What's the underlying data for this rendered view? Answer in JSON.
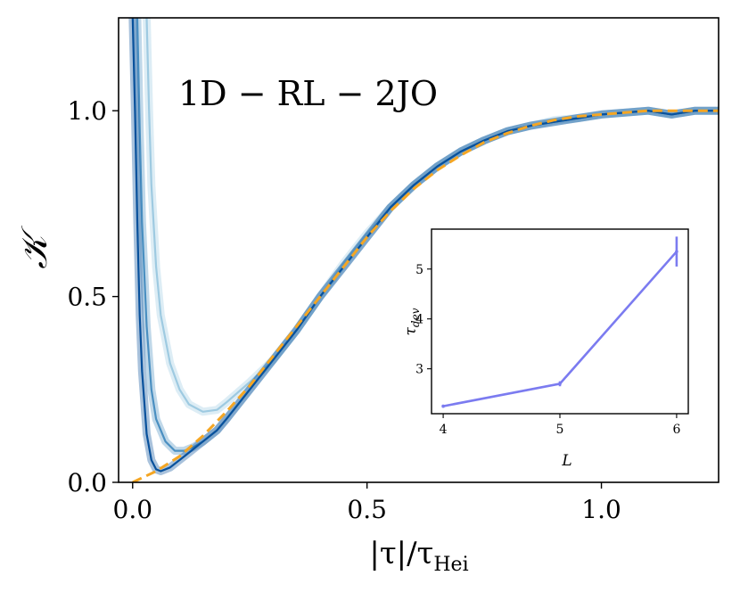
{
  "chart_data": [
    {
      "type": "line",
      "annotation": "1D − RL − 2JO",
      "xlabel": "|τ|/τ",
      "xlabel_sub": "Hei",
      "ylabel": "𝒦",
      "xlim": [
        -0.03,
        1.25
      ],
      "ylim": [
        0.0,
        1.25
      ],
      "xticks": [
        0.0,
        0.5,
        1.0
      ],
      "xtick_labels": [
        "0.0",
        "0.5",
        "1.0"
      ],
      "yticks": [
        0.0,
        0.5,
        1.0
      ],
      "ytick_labels": [
        "0.0",
        "0.5",
        "1.0"
      ],
      "grid": false,
      "series": [
        {
          "color": "#9ecae1",
          "x": [
            0.03,
            0.035,
            0.04,
            0.05,
            0.06,
            0.08,
            0.1,
            0.12,
            0.15,
            0.18,
            0.2,
            0.25,
            0.3,
            0.35,
            0.4,
            0.45,
            0.5,
            0.55,
            0.6,
            0.65,
            0.7,
            0.75,
            0.8,
            0.85,
            0.9,
            0.95,
            1.0,
            1.05,
            1.1,
            1.15,
            1.2,
            1.25
          ],
          "y": [
            1.25,
            1.0,
            0.8,
            0.58,
            0.45,
            0.32,
            0.25,
            0.21,
            0.19,
            0.195,
            0.215,
            0.27,
            0.33,
            0.41,
            0.5,
            0.59,
            0.67,
            0.74,
            0.8,
            0.85,
            0.89,
            0.92,
            0.945,
            0.96,
            0.975,
            0.98,
            0.99,
            0.995,
            1.0,
            0.99,
            1.0,
            1.0
          ]
        },
        {
          "color": "#4a8fc1",
          "x": [
            0.01,
            0.015,
            0.02,
            0.03,
            0.04,
            0.05,
            0.07,
            0.09,
            0.11,
            0.13,
            0.15,
            0.18,
            0.2,
            0.25,
            0.3,
            0.35,
            0.4,
            0.45,
            0.5,
            0.55,
            0.6,
            0.65,
            0.7,
            0.75,
            0.8,
            0.85,
            0.9,
            0.95,
            1.0,
            1.05,
            1.1,
            1.15,
            1.2,
            1.25
          ],
          "y": [
            1.25,
            0.95,
            0.7,
            0.42,
            0.25,
            0.17,
            0.11,
            0.085,
            0.085,
            0.095,
            0.11,
            0.14,
            0.17,
            0.25,
            0.33,
            0.41,
            0.5,
            0.58,
            0.66,
            0.74,
            0.8,
            0.85,
            0.89,
            0.92,
            0.945,
            0.96,
            0.97,
            0.98,
            0.99,
            0.995,
            1.0,
            0.99,
            1.0,
            1.0
          ]
        },
        {
          "color": "#08519c",
          "x": [
            0.0,
            0.005,
            0.01,
            0.015,
            0.02,
            0.03,
            0.04,
            0.05,
            0.06,
            0.08,
            0.1,
            0.12,
            0.15,
            0.18,
            0.2,
            0.25,
            0.3,
            0.35,
            0.4,
            0.45,
            0.5,
            0.55,
            0.6,
            0.65,
            0.7,
            0.75,
            0.8,
            0.85,
            0.9,
            0.95,
            1.0,
            1.05,
            1.1,
            1.15,
            1.2,
            1.25
          ],
          "y": [
            1.25,
            1.0,
            0.7,
            0.45,
            0.3,
            0.13,
            0.06,
            0.035,
            0.03,
            0.04,
            0.06,
            0.08,
            0.11,
            0.14,
            0.17,
            0.25,
            0.33,
            0.41,
            0.5,
            0.58,
            0.66,
            0.74,
            0.8,
            0.85,
            0.89,
            0.92,
            0.945,
            0.96,
            0.97,
            0.98,
            0.99,
            0.995,
            1.0,
            0.99,
            1.0,
            1.0
          ]
        },
        {
          "color": "#f5a623",
          "style": "dashed",
          "x": [
            0.0,
            0.05,
            0.1,
            0.15,
            0.2,
            0.25,
            0.3,
            0.35,
            0.4,
            0.45,
            0.5,
            0.55,
            0.6,
            0.65,
            0.7,
            0.75,
            0.8,
            0.85,
            0.9,
            0.95,
            1.0,
            1.05,
            1.1,
            1.15,
            1.2,
            1.25
          ],
          "y": [
            0.0,
            0.03,
            0.07,
            0.125,
            0.19,
            0.26,
            0.34,
            0.42,
            0.5,
            0.58,
            0.66,
            0.73,
            0.79,
            0.84,
            0.88,
            0.915,
            0.94,
            0.96,
            0.975,
            0.985,
            0.99,
            0.995,
            1.0,
            1.0,
            1.0,
            1.0
          ]
        }
      ]
    },
    {
      "type": "line",
      "xlabel": "L",
      "ylabel": "τ",
      "ylabel_sub": "dev",
      "xlim": [
        3.9,
        6.1
      ],
      "ylim": [
        2.1,
        5.8
      ],
      "xticks": [
        4,
        5,
        6
      ],
      "xtick_labels": [
        "4",
        "5",
        "6"
      ],
      "yticks": [
        3,
        4,
        5
      ],
      "ytick_labels": [
        "3",
        "4",
        "5"
      ],
      "series": [
        {
          "color": "#7b7bf0",
          "x": [
            4,
            5,
            6
          ],
          "y": [
            2.25,
            2.7,
            5.35
          ],
          "yerr": [
            0.03,
            0.05,
            0.3
          ]
        }
      ]
    }
  ]
}
